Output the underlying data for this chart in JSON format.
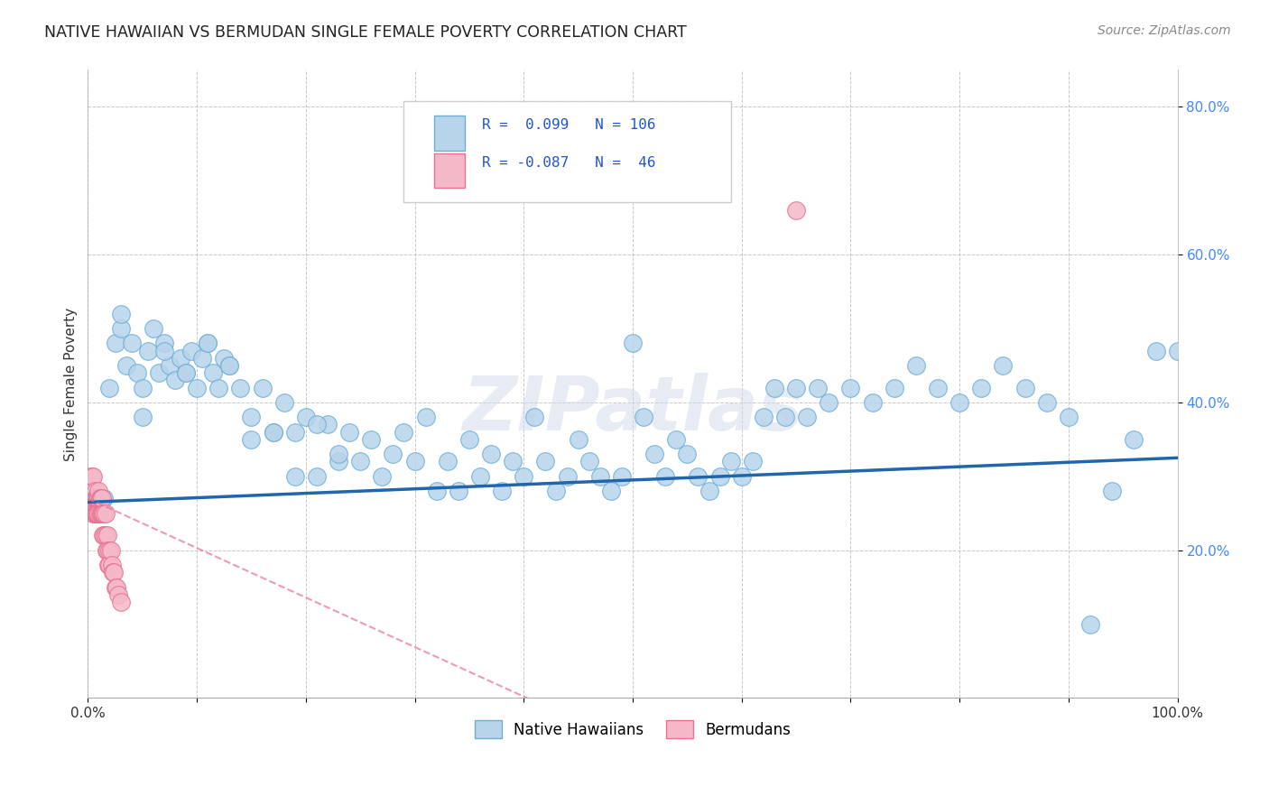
{
  "title": "NATIVE HAWAIIAN VS BERMUDAN SINGLE FEMALE POVERTY CORRELATION CHART",
  "source_text": "Source: ZipAtlas.com",
  "ylabel": "Single Female Poverty",
  "xlim": [
    0.0,
    1.0
  ],
  "ylim": [
    0.0,
    0.85
  ],
  "y_tick_vals": [
    0.2,
    0.4,
    0.6,
    0.8
  ],
  "blue_scatter_face": "#b8d4ea",
  "blue_scatter_edge": "#6baed6",
  "pink_scatter_face": "#f4b8c8",
  "pink_scatter_edge": "#e87090",
  "blue_line_color": "#2166ac",
  "pink_line_color": "#e87090",
  "background_color": "#ffffff",
  "grid_color": "#bbbbbb",
  "watermark": "ZIPatlas",
  "title_color": "#222222",
  "ylabel_color": "#333333",
  "ytick_color": "#4488ff",
  "xtick_color": "#333333",
  "source_color": "#888888",
  "legend_text_color": "#2255cc",
  "nh_x": [
    0.015,
    0.02,
    0.025,
    0.03,
    0.035,
    0.04,
    0.045,
    0.05,
    0.055,
    0.06,
    0.065,
    0.07,
    0.075,
    0.08,
    0.085,
    0.09,
    0.095,
    0.1,
    0.105,
    0.11,
    0.115,
    0.12,
    0.125,
    0.13,
    0.14,
    0.15,
    0.16,
    0.17,
    0.18,
    0.19,
    0.2,
    0.21,
    0.22,
    0.23,
    0.24,
    0.25,
    0.26,
    0.27,
    0.28,
    0.29,
    0.3,
    0.31,
    0.32,
    0.33,
    0.34,
    0.35,
    0.36,
    0.37,
    0.38,
    0.39,
    0.4,
    0.41,
    0.42,
    0.43,
    0.44,
    0.45,
    0.46,
    0.47,
    0.48,
    0.49,
    0.5,
    0.51,
    0.52,
    0.53,
    0.54,
    0.55,
    0.56,
    0.57,
    0.58,
    0.59,
    0.6,
    0.61,
    0.62,
    0.63,
    0.64,
    0.65,
    0.66,
    0.67,
    0.68,
    0.7,
    0.72,
    0.74,
    0.76,
    0.78,
    0.8,
    0.82,
    0.84,
    0.86,
    0.88,
    0.9,
    0.92,
    0.94,
    0.96,
    0.98,
    1.0,
    0.03,
    0.05,
    0.07,
    0.09,
    0.11,
    0.13,
    0.15,
    0.17,
    0.19,
    0.21,
    0.23
  ],
  "nh_y": [
    0.27,
    0.42,
    0.48,
    0.5,
    0.45,
    0.48,
    0.44,
    0.42,
    0.47,
    0.5,
    0.44,
    0.48,
    0.45,
    0.43,
    0.46,
    0.44,
    0.47,
    0.42,
    0.46,
    0.48,
    0.44,
    0.42,
    0.46,
    0.45,
    0.42,
    0.38,
    0.42,
    0.36,
    0.4,
    0.36,
    0.38,
    0.3,
    0.37,
    0.32,
    0.36,
    0.32,
    0.35,
    0.3,
    0.33,
    0.36,
    0.32,
    0.38,
    0.28,
    0.32,
    0.28,
    0.35,
    0.3,
    0.33,
    0.28,
    0.32,
    0.3,
    0.38,
    0.32,
    0.28,
    0.3,
    0.35,
    0.32,
    0.3,
    0.28,
    0.3,
    0.48,
    0.38,
    0.33,
    0.3,
    0.35,
    0.33,
    0.3,
    0.28,
    0.3,
    0.32,
    0.3,
    0.32,
    0.38,
    0.42,
    0.38,
    0.42,
    0.38,
    0.42,
    0.4,
    0.42,
    0.4,
    0.42,
    0.45,
    0.42,
    0.4,
    0.42,
    0.45,
    0.42,
    0.4,
    0.38,
    0.1,
    0.28,
    0.35,
    0.47,
    0.47,
    0.52,
    0.38,
    0.47,
    0.44,
    0.48,
    0.45,
    0.35,
    0.36,
    0.3,
    0.37,
    0.33
  ],
  "bm_x": [
    0.002,
    0.003,
    0.004,
    0.004,
    0.005,
    0.005,
    0.005,
    0.006,
    0.006,
    0.007,
    0.007,
    0.007,
    0.008,
    0.008,
    0.009,
    0.009,
    0.01,
    0.01,
    0.01,
    0.011,
    0.011,
    0.012,
    0.012,
    0.013,
    0.013,
    0.014,
    0.014,
    0.015,
    0.015,
    0.016,
    0.016,
    0.017,
    0.018,
    0.018,
    0.019,
    0.02,
    0.02,
    0.021,
    0.022,
    0.023,
    0.024,
    0.025,
    0.026,
    0.028,
    0.03,
    0.65
  ],
  "bm_y": [
    0.27,
    0.3,
    0.27,
    0.3,
    0.25,
    0.28,
    0.3,
    0.27,
    0.25,
    0.28,
    0.25,
    0.27,
    0.27,
    0.25,
    0.27,
    0.25,
    0.27,
    0.25,
    0.28,
    0.25,
    0.27,
    0.25,
    0.27,
    0.25,
    0.27,
    0.25,
    0.22,
    0.25,
    0.22,
    0.25,
    0.22,
    0.2,
    0.22,
    0.2,
    0.18,
    0.2,
    0.18,
    0.2,
    0.18,
    0.17,
    0.17,
    0.15,
    0.15,
    0.14,
    0.13,
    0.66
  ]
}
